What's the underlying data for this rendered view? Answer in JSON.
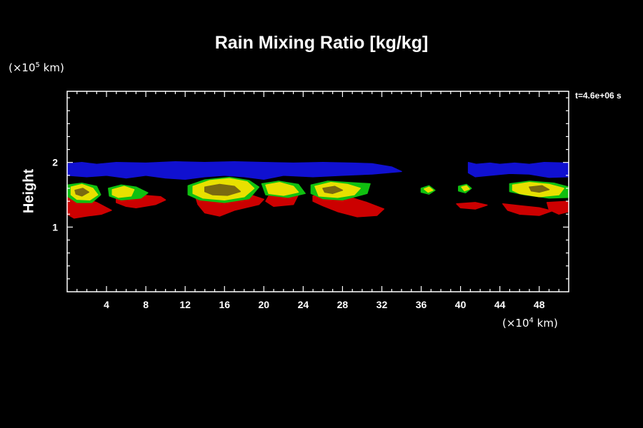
{
  "chart_data": {
    "type": "heatmap",
    "title": "Rain Mixing Ratio [kg/kg]",
    "ylabel": "Height",
    "y_unit": {
      "prefix": "(×10",
      "exponent": "5",
      "suffix": " km)"
    },
    "x_unit": {
      "prefix": "(×10",
      "exponent": "4",
      "suffix": " km)"
    },
    "time_label": "t=4.6e+06 s",
    "xlim": [
      0,
      51
    ],
    "ylim": [
      0,
      3.1
    ],
    "x_ticks": [
      4,
      8,
      12,
      16,
      20,
      24,
      28,
      32,
      36,
      40,
      44,
      48
    ],
    "y_ticks": [
      1,
      2
    ],
    "grid": false,
    "colors": {
      "blue": "#1010d0",
      "red": "#cc0000",
      "green": "#10c010",
      "yellow": "#e8e000",
      "olive": "#7a6a10"
    },
    "regions": [
      {
        "color": "blue",
        "points": [
          [
            0,
            1.98
          ],
          [
            1.5,
            2.0
          ],
          [
            3,
            1.97
          ],
          [
            5,
            2.0
          ],
          [
            8,
            1.99
          ],
          [
            11,
            2.01
          ],
          [
            14,
            2.0
          ],
          [
            17,
            2.01
          ],
          [
            20,
            2.0
          ],
          [
            23,
            1.99
          ],
          [
            26,
            2.0
          ],
          [
            29,
            1.99
          ],
          [
            31,
            1.98
          ],
          [
            33,
            1.93
          ],
          [
            34,
            1.86
          ],
          [
            31,
            1.82
          ],
          [
            28,
            1.8
          ],
          [
            25,
            1.78
          ],
          [
            22,
            1.8
          ],
          [
            20,
            1.74
          ],
          [
            18,
            1.78
          ],
          [
            16,
            1.8
          ],
          [
            14,
            1.78
          ],
          [
            12,
            1.74
          ],
          [
            10,
            1.76
          ],
          [
            8,
            1.8
          ],
          [
            6,
            1.76
          ],
          [
            4,
            1.8
          ],
          [
            2,
            1.78
          ],
          [
            0,
            1.8
          ]
        ]
      },
      {
        "color": "blue",
        "points": [
          [
            40.8,
            2.0
          ],
          [
            41.6,
            1.97
          ],
          [
            43,
            1.99
          ],
          [
            44,
            1.97
          ],
          [
            45.5,
            1.99
          ],
          [
            47,
            1.97
          ],
          [
            48.5,
            2.0
          ],
          [
            51,
            1.99
          ],
          [
            51,
            1.78
          ],
          [
            49,
            1.77
          ],
          [
            47,
            1.82
          ],
          [
            45,
            1.83
          ],
          [
            43,
            1.8
          ],
          [
            41.5,
            1.78
          ],
          [
            40.8,
            1.84
          ]
        ]
      },
      {
        "color": "red",
        "points": [
          [
            0,
            1.48
          ],
          [
            1.5,
            1.46
          ],
          [
            3,
            1.38
          ],
          [
            4.5,
            1.26
          ],
          [
            3.5,
            1.2
          ],
          [
            2,
            1.17
          ],
          [
            0.7,
            1.14
          ],
          [
            0,
            1.2
          ]
        ]
      },
      {
        "color": "red",
        "points": [
          [
            5,
            1.45
          ],
          [
            7,
            1.5
          ],
          [
            9.5,
            1.47
          ],
          [
            10,
            1.42
          ],
          [
            9,
            1.35
          ],
          [
            7,
            1.3
          ],
          [
            6,
            1.32
          ],
          [
            5,
            1.38
          ]
        ]
      },
      {
        "color": "red",
        "points": [
          [
            13,
            1.5
          ],
          [
            15,
            1.53
          ],
          [
            17,
            1.52
          ],
          [
            19,
            1.48
          ],
          [
            20,
            1.43
          ],
          [
            19.5,
            1.35
          ],
          [
            17,
            1.26
          ],
          [
            15.5,
            1.17
          ],
          [
            14,
            1.22
          ],
          [
            13.3,
            1.35
          ]
        ]
      },
      {
        "color": "red",
        "points": [
          [
            20.5,
            1.48
          ],
          [
            22,
            1.46
          ],
          [
            23.5,
            1.5
          ],
          [
            23,
            1.35
          ],
          [
            21,
            1.32
          ],
          [
            20.2,
            1.4
          ]
        ]
      },
      {
        "color": "red",
        "points": [
          [
            25,
            1.48
          ],
          [
            27,
            1.48
          ],
          [
            29,
            1.45
          ],
          [
            30.5,
            1.38
          ],
          [
            32.2,
            1.28
          ],
          [
            31.5,
            1.18
          ],
          [
            29.5,
            1.16
          ],
          [
            27.5,
            1.24
          ],
          [
            26,
            1.33
          ],
          [
            25,
            1.4
          ]
        ]
      },
      {
        "color": "red",
        "points": [
          [
            39.6,
            1.36
          ],
          [
            41.5,
            1.38
          ],
          [
            42.7,
            1.34
          ],
          [
            41.5,
            1.28
          ],
          [
            40,
            1.3
          ]
        ]
      },
      {
        "color": "red",
        "points": [
          [
            44.3,
            1.36
          ],
          [
            46,
            1.33
          ],
          [
            48,
            1.3
          ],
          [
            49.3,
            1.25
          ],
          [
            48,
            1.18
          ],
          [
            46,
            1.2
          ],
          [
            44.8,
            1.26
          ]
        ]
      },
      {
        "color": "red",
        "points": [
          [
            48.8,
            1.38
          ],
          [
            51,
            1.4
          ],
          [
            51,
            1.24
          ],
          [
            50,
            1.2
          ],
          [
            49,
            1.27
          ]
        ]
      },
      {
        "color": "green",
        "points": [
          [
            0,
            1.65
          ],
          [
            1.5,
            1.68
          ],
          [
            3,
            1.63
          ],
          [
            3.4,
            1.5
          ],
          [
            2.5,
            1.38
          ],
          [
            1,
            1.38
          ],
          [
            0,
            1.48
          ]
        ]
      },
      {
        "color": "green",
        "points": [
          [
            4.2,
            1.6
          ],
          [
            5.5,
            1.65
          ],
          [
            7,
            1.62
          ],
          [
            8.2,
            1.53
          ],
          [
            7.5,
            1.45
          ],
          [
            5.5,
            1.42
          ],
          [
            4.3,
            1.48
          ]
        ]
      },
      {
        "color": "green",
        "points": [
          [
            12.3,
            1.64
          ],
          [
            14,
            1.73
          ],
          [
            16.5,
            1.77
          ],
          [
            18.5,
            1.72
          ],
          [
            19.5,
            1.62
          ],
          [
            18.5,
            1.44
          ],
          [
            16,
            1.38
          ],
          [
            13.5,
            1.42
          ],
          [
            12.3,
            1.5
          ]
        ]
      },
      {
        "color": "green",
        "points": [
          [
            19.8,
            1.67
          ],
          [
            21.5,
            1.71
          ],
          [
            23.5,
            1.66
          ],
          [
            24.2,
            1.52
          ],
          [
            22.5,
            1.46
          ],
          [
            20.2,
            1.5
          ]
        ]
      },
      {
        "color": "green",
        "points": [
          [
            24.8,
            1.65
          ],
          [
            26.5,
            1.71
          ],
          [
            28.5,
            1.69
          ],
          [
            30.8,
            1.67
          ],
          [
            30.5,
            1.52
          ],
          [
            28,
            1.42
          ],
          [
            26,
            1.44
          ],
          [
            24.8,
            1.52
          ]
        ]
      },
      {
        "color": "green",
        "points": [
          [
            36,
            1.6
          ],
          [
            36.8,
            1.64
          ],
          [
            37.4,
            1.57
          ],
          [
            36.8,
            1.51
          ],
          [
            36,
            1.54
          ]
        ]
      },
      {
        "color": "green",
        "points": [
          [
            39.8,
            1.63
          ],
          [
            40.6,
            1.66
          ],
          [
            41.1,
            1.6
          ],
          [
            40.5,
            1.53
          ],
          [
            39.8,
            1.56
          ]
        ]
      },
      {
        "color": "green",
        "points": [
          [
            45,
            1.67
          ],
          [
            47,
            1.71
          ],
          [
            49.5,
            1.68
          ],
          [
            51,
            1.62
          ],
          [
            51,
            1.46
          ],
          [
            49,
            1.45
          ],
          [
            46.5,
            1.5
          ],
          [
            45,
            1.55
          ]
        ]
      },
      {
        "color": "yellow",
        "points": [
          [
            0.4,
            1.62
          ],
          [
            1.5,
            1.66
          ],
          [
            2.6,
            1.6
          ],
          [
            3.1,
            1.5
          ],
          [
            2.3,
            1.42
          ],
          [
            1,
            1.43
          ],
          [
            0.4,
            1.5
          ]
        ]
      },
      {
        "color": "yellow",
        "points": [
          [
            4.6,
            1.58
          ],
          [
            5.8,
            1.63
          ],
          [
            6.8,
            1.58
          ],
          [
            6.5,
            1.48
          ],
          [
            5.2,
            1.46
          ],
          [
            4.6,
            1.5
          ]
        ]
      },
      {
        "color": "yellow",
        "points": [
          [
            12.8,
            1.63
          ],
          [
            14.5,
            1.72
          ],
          [
            16.5,
            1.75
          ],
          [
            18.3,
            1.7
          ],
          [
            19,
            1.6
          ],
          [
            18,
            1.47
          ],
          [
            16,
            1.42
          ],
          [
            13.8,
            1.45
          ],
          [
            12.8,
            1.52
          ]
        ]
      },
      {
        "color": "yellow",
        "points": [
          [
            20.2,
            1.65
          ],
          [
            21.6,
            1.69
          ],
          [
            23,
            1.63
          ],
          [
            23.5,
            1.54
          ],
          [
            22,
            1.49
          ],
          [
            20.5,
            1.52
          ]
        ]
      },
      {
        "color": "yellow",
        "points": [
          [
            25.2,
            1.63
          ],
          [
            26.8,
            1.69
          ],
          [
            28.5,
            1.66
          ],
          [
            29.8,
            1.6
          ],
          [
            29.2,
            1.5
          ],
          [
            27.5,
            1.46
          ],
          [
            25.6,
            1.48
          ]
        ]
      },
      {
        "color": "yellow",
        "points": [
          [
            36.3,
            1.59
          ],
          [
            36.8,
            1.62
          ],
          [
            37.2,
            1.57
          ],
          [
            36.7,
            1.54
          ]
        ]
      },
      {
        "color": "yellow",
        "points": [
          [
            40.1,
            1.62
          ],
          [
            40.6,
            1.64
          ],
          [
            40.9,
            1.59
          ],
          [
            40.4,
            1.56
          ]
        ]
      },
      {
        "color": "yellow",
        "points": [
          [
            45.3,
            1.65
          ],
          [
            47,
            1.69
          ],
          [
            49,
            1.66
          ],
          [
            50.5,
            1.6
          ],
          [
            50,
            1.5
          ],
          [
            48,
            1.47
          ],
          [
            46,
            1.52
          ],
          [
            45.3,
            1.57
          ]
        ]
      },
      {
        "color": "olive",
        "points": [
          [
            14,
            1.62
          ],
          [
            15.5,
            1.66
          ],
          [
            17,
            1.63
          ],
          [
            17.6,
            1.55
          ],
          [
            16.3,
            1.49
          ],
          [
            14.8,
            1.5
          ],
          [
            14,
            1.55
          ]
        ]
      },
      {
        "color": "olive",
        "points": [
          [
            0.8,
            1.57
          ],
          [
            1.6,
            1.6
          ],
          [
            2.2,
            1.54
          ],
          [
            1.5,
            1.48
          ],
          [
            0.9,
            1.51
          ]
        ]
      },
      {
        "color": "olive",
        "points": [
          [
            26,
            1.6
          ],
          [
            27.2,
            1.63
          ],
          [
            28,
            1.57
          ],
          [
            27,
            1.52
          ],
          [
            26.2,
            1.54
          ]
        ]
      },
      {
        "color": "olive",
        "points": [
          [
            47,
            1.62
          ],
          [
            48.3,
            1.64
          ],
          [
            49,
            1.58
          ],
          [
            48,
            1.54
          ],
          [
            47.2,
            1.56
          ]
        ]
      }
    ]
  }
}
